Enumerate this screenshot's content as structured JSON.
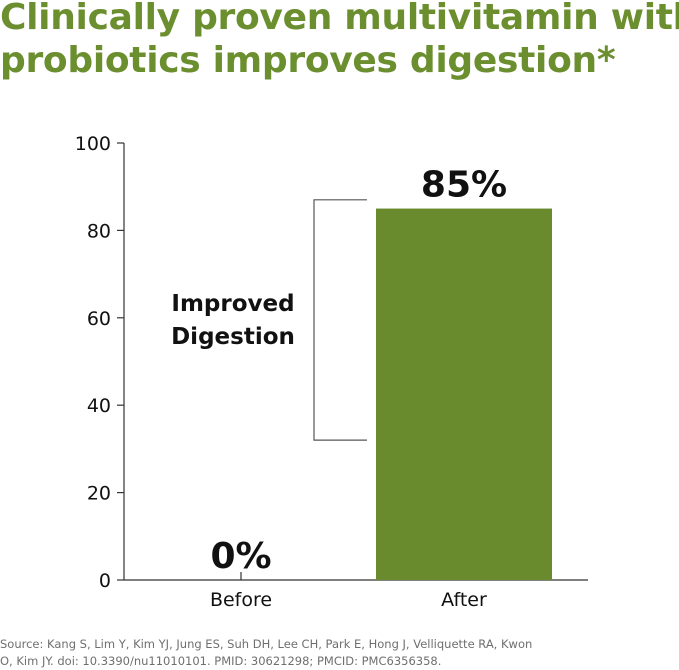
{
  "title": {
    "line1": "Clinically proven multivitamin with",
    "line2": "probiotics improves digestion*"
  },
  "colors": {
    "title": "#6b8e2f",
    "bar": "#698a2d",
    "axis": "#333333",
    "text": "#111111",
    "source": "#6f6f6f"
  },
  "chart_data": {
    "type": "bar",
    "categories": [
      "Before",
      "After"
    ],
    "values": [
      0,
      85
    ],
    "data_labels": [
      "0%",
      "85%"
    ],
    "yticks": [
      "0",
      "20",
      "40",
      "60",
      "80",
      "100"
    ],
    "ylim": [
      0,
      100
    ],
    "xlabel": "",
    "ylabel": "",
    "grid": false,
    "annotation": {
      "line1": "Improved",
      "line2": "Digestion",
      "from": 32,
      "to": 87
    }
  },
  "source": {
    "line1": "Source: Kang S, Lim Y, Kim YJ, Jung ES, Suh DH, Lee CH, Park E, Hong J, Velliquette RA, Kwon",
    "line2": "O, Kim JY. doi: 10.3390/nu11010101. PMID: 30621298; PMCID: PMC6356358."
  }
}
